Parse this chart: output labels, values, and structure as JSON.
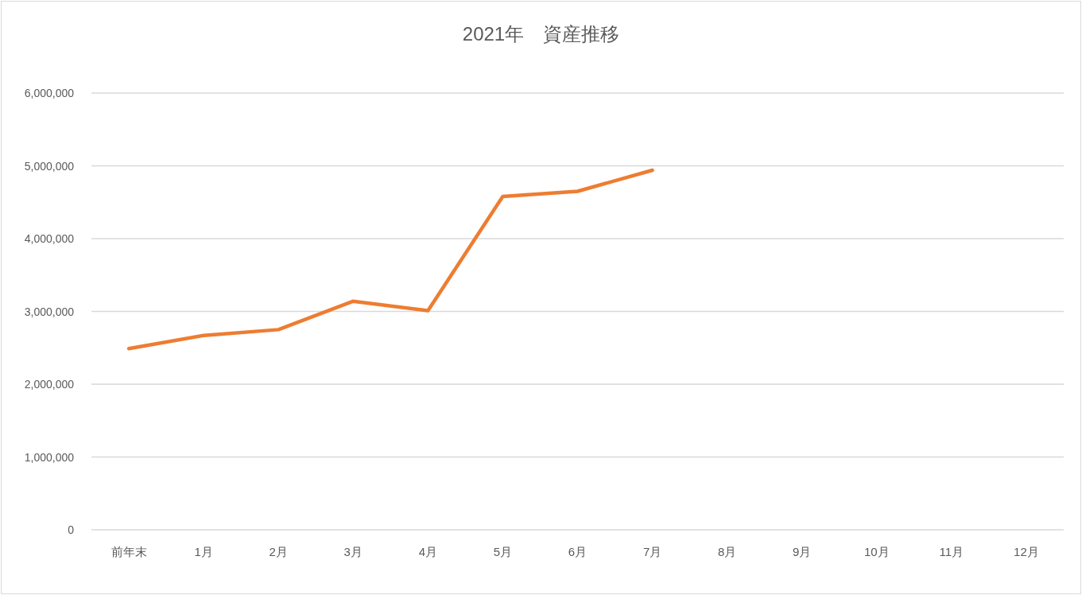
{
  "chart_data": {
    "type": "line",
    "title": "2021年　資産推移",
    "categories": [
      "前年末",
      "1月",
      "2月",
      "3月",
      "4月",
      "5月",
      "6月",
      "7月",
      "8月",
      "9月",
      "10月",
      "11月",
      "12月"
    ],
    "series": [
      {
        "color": "#ed7d31",
        "values": [
          2490000,
          2670000,
          2750000,
          3140000,
          3010000,
          4580000,
          4650000,
          4940000,
          null,
          null,
          null,
          null,
          null
        ]
      }
    ],
    "ylim": [
      0,
      6000000
    ],
    "yticks": [
      {
        "value": 0,
        "label": "0"
      },
      {
        "value": 1000000,
        "label": "1,000,000"
      },
      {
        "value": 2000000,
        "label": "2,000,000"
      },
      {
        "value": 3000000,
        "label": "3,000,000"
      },
      {
        "value": 4000000,
        "label": "4,000,000"
      },
      {
        "value": 5000000,
        "label": "5,000,000"
      },
      {
        "value": 6000000,
        "label": "6,000,000"
      }
    ],
    "grid": "y"
  }
}
